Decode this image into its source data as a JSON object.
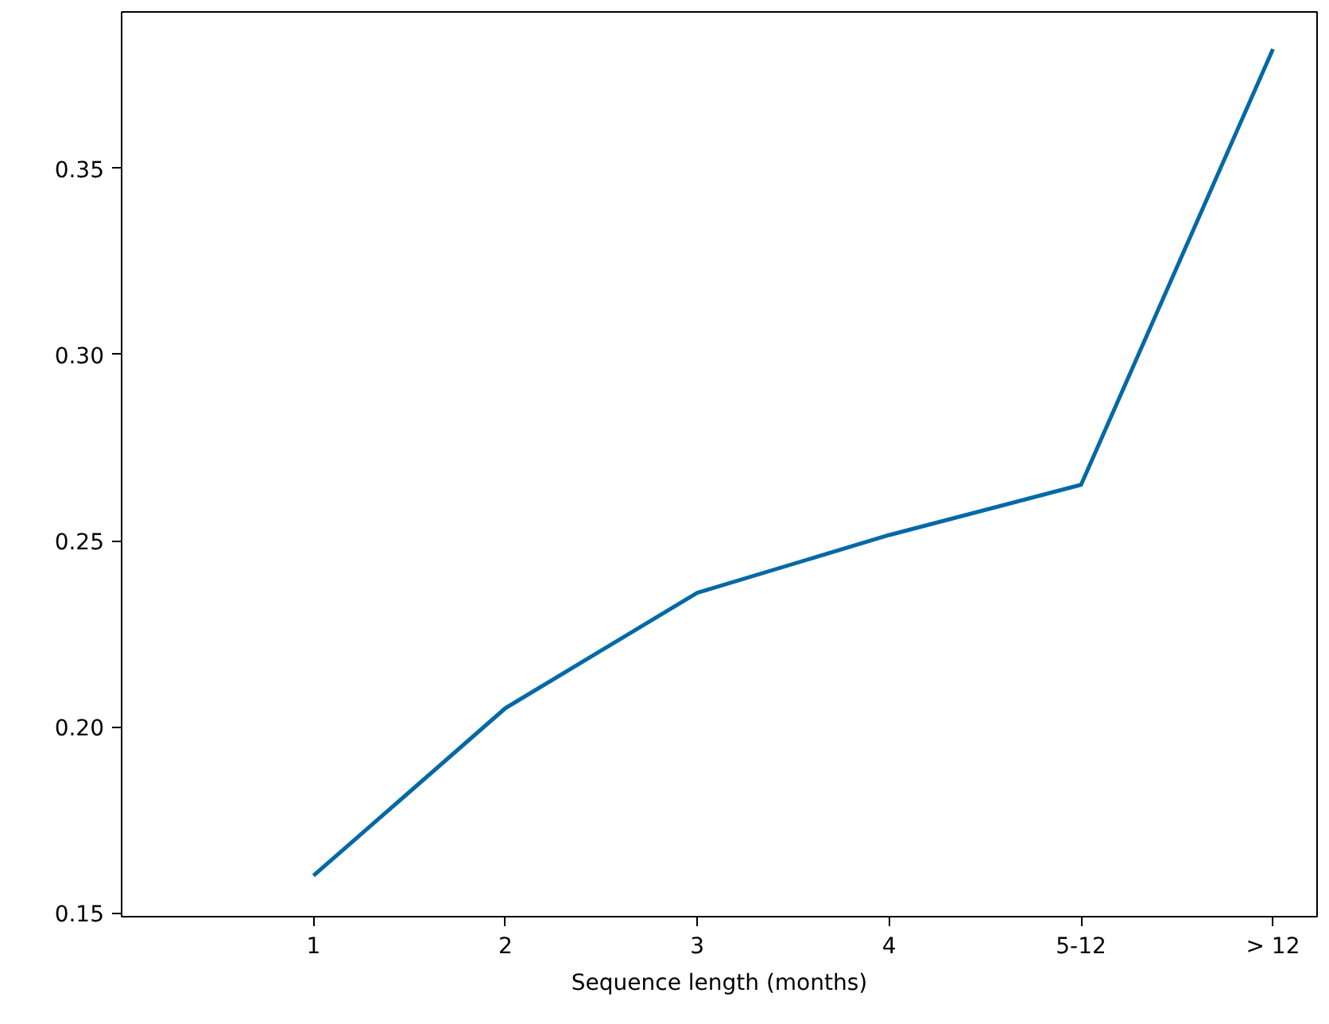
{
  "chart_data": {
    "type": "line",
    "xlabel": "Sequence length (months)",
    "categories": [
      "1",
      "2",
      "3",
      "4",
      "5-12",
      "> 12"
    ],
    "series": [
      {
        "color": "#0369a6",
        "values": [
          0.16,
          0.205,
          0.236,
          0.2515,
          0.265,
          0.382
        ]
      }
    ],
    "ylim": [
      0.149,
      0.392
    ],
    "yticks": [
      {
        "value": 0.15,
        "label": "0.15"
      },
      {
        "value": 0.2,
        "label": "0.20"
      },
      {
        "value": 0.25,
        "label": "0.25"
      },
      {
        "value": 0.3,
        "label": "0.30"
      },
      {
        "value": 0.35,
        "label": "0.35"
      }
    ],
    "line_style": "solid"
  }
}
